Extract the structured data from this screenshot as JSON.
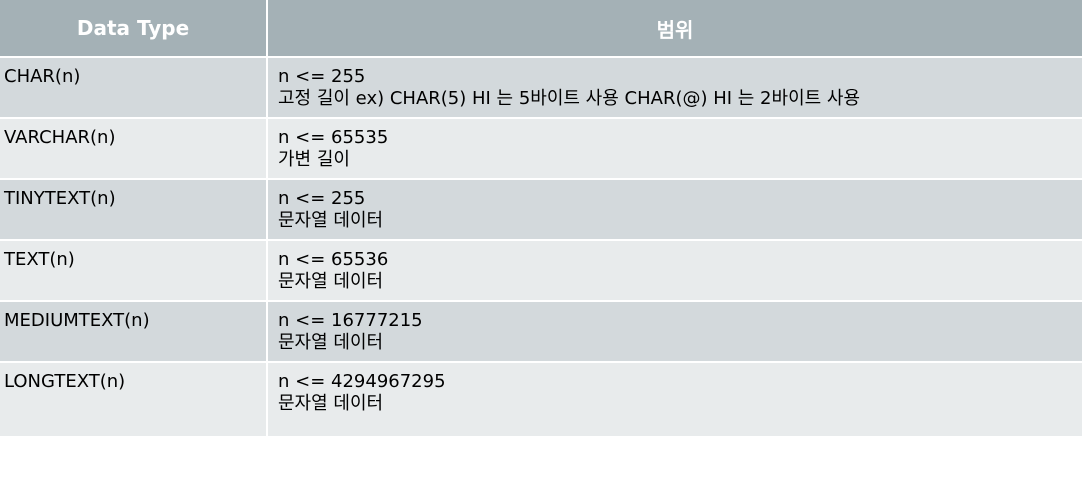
{
  "table": {
    "headers": [
      "Data Type",
      "범위"
    ],
    "rows": [
      {
        "type": "CHAR(n)",
        "range": "n <= 255",
        "desc": "고정 길이 ex) CHAR(5) HI 는 5바이트 사용 CHAR(@) HI 는 2바이트 사용"
      },
      {
        "type": "VARCHAR(n)",
        "range": "n <= 65535",
        "desc": "가변 길이"
      },
      {
        "type": "TINYTEXT(n)",
        "range": "n <= 255",
        "desc": "문자열 데이터"
      },
      {
        "type": "TEXT(n)",
        "range": "n <= 65536",
        "desc": "문자열 데이터"
      },
      {
        "type": "MEDIUMTEXT(n)",
        "range": "n <= 16777215",
        "desc": "문자열 데이터"
      },
      {
        "type": "LONGTEXT(n)",
        "range": "n <= 4294967295",
        "desc": "문자열 데이터"
      }
    ]
  },
  "colors": {
    "header_bg": "#a4b1b6",
    "row_dark": "#d3d9dc",
    "row_light": "#e8ebec"
  }
}
